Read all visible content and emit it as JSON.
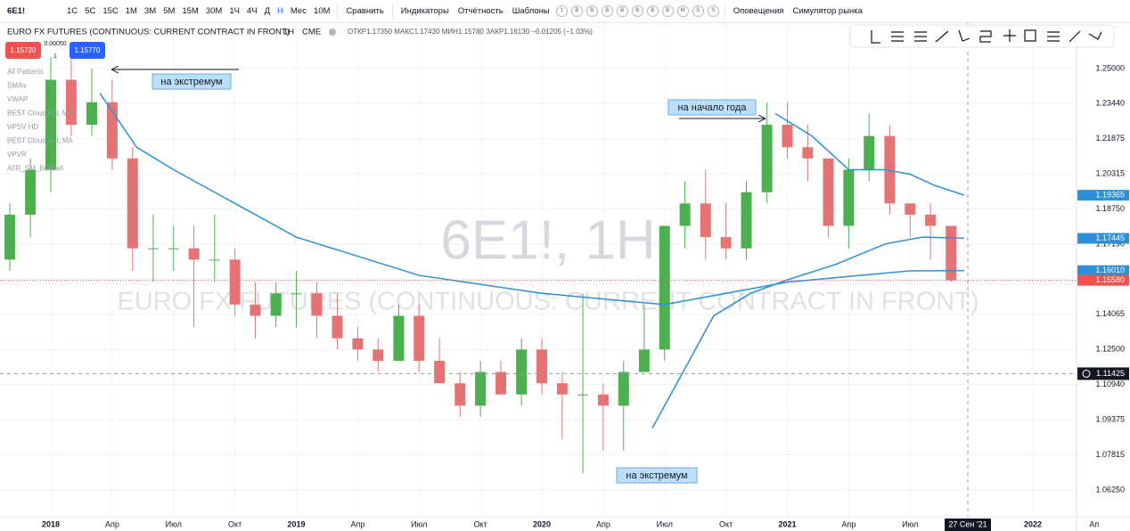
{
  "toolbar": {
    "symbol": "6E1!",
    "intervals": [
      "1С",
      "5С",
      "15С",
      "1М",
      "3М",
      "5М",
      "15М",
      "30М",
      "1Ч",
      "4Ч",
      "Д",
      "Н",
      "Мес",
      "10М"
    ],
    "compare": "Сравнить",
    "indicators": "Индикаторы",
    "reports": "Отчётность",
    "templates": "Шаблоны",
    "badges": [
      "1",
      "B",
      "B",
      "B",
      "B",
      "B",
      "B",
      "B",
      "M",
      "S",
      "S"
    ],
    "alerts": "Оповещения",
    "replay": "Симулятор рынка"
  },
  "legend": {
    "title": "EURO FX FUTURES (CONTINUOUS: CURRENT CONTRACT IN FRONT)",
    "interval": "1H",
    "exchange": "CME",
    "ohlc": "ОТКР1.17350 МАКС1.17430 МИН1.15780 ЗАКР1.16130 −0.01205 (−1.03%)",
    "sell": "1.15720",
    "spread": "0.00050",
    "qty": "1",
    "buy": "1.15770",
    "indicators": [
      "All Patterns",
      "SMAs",
      "VWAP",
      "BEST Cloud ALL MA",
      "VPSV HD",
      "BEST Cloud ALL MA",
      "VPVR",
      "ATR_SM_BullBell"
    ]
  },
  "watermark": {
    "symbol": "6E1!, 1H",
    "description": "EURO FX FUTURES (CONTINUOUS: CURRENT CONTRACT IN FRONT)"
  },
  "chart_data": {
    "type": "candlestick",
    "x": [
      2017.833,
      2017.917,
      2018.0,
      2018.083,
      2018.167,
      2018.25,
      2018.333,
      2018.417,
      2018.5,
      2018.583,
      2018.667,
      2018.75,
      2018.833,
      2018.917,
      2019.0,
      2019.083,
      2019.167,
      2019.25,
      2019.333,
      2019.417,
      2019.5,
      2019.583,
      2019.667,
      2019.75,
      2019.833,
      2019.917,
      2020.0,
      2020.083,
      2020.167,
      2020.25,
      2020.333,
      2020.417,
      2020.5,
      2020.583,
      2020.667,
      2020.75,
      2020.833,
      2020.917,
      2021.0,
      2021.083,
      2021.167,
      2021.25,
      2021.333,
      2021.417,
      2021.5,
      2021.583,
      2021.667
    ],
    "open": [
      1.165,
      1.185,
      1.205,
      1.245,
      1.225,
      1.235,
      1.21,
      1.17,
      1.17,
      1.17,
      1.165,
      1.165,
      1.145,
      1.14,
      1.15,
      1.15,
      1.14,
      1.13,
      1.125,
      1.12,
      1.14,
      1.12,
      1.11,
      1.1,
      1.115,
      1.105,
      1.125,
      1.11,
      1.105,
      1.105,
      1.1,
      1.115,
      1.125,
      1.18,
      1.19,
      1.175,
      1.17,
      1.195,
      1.225,
      1.215,
      1.21,
      1.18,
      1.205,
      1.22,
      1.19,
      1.185,
      1.18
    ],
    "high": [
      1.19,
      1.21,
      1.255,
      1.26,
      1.25,
      1.245,
      1.215,
      1.185,
      1.18,
      1.18,
      1.185,
      1.17,
      1.155,
      1.155,
      1.16,
      1.155,
      1.15,
      1.135,
      1.13,
      1.145,
      1.145,
      1.13,
      1.115,
      1.12,
      1.12,
      1.13,
      1.13,
      1.115,
      1.15,
      1.11,
      1.12,
      1.145,
      1.18,
      1.2,
      1.205,
      1.19,
      1.2,
      1.235,
      1.235,
      1.225,
      1.21,
      1.21,
      1.23,
      1.225,
      1.19,
      1.19,
      1.18
    ],
    "low": [
      1.16,
      1.175,
      1.195,
      1.22,
      1.22,
      1.205,
      1.16,
      1.155,
      1.16,
      1.135,
      1.155,
      1.14,
      1.13,
      1.135,
      1.135,
      1.13,
      1.125,
      1.12,
      1.115,
      1.12,
      1.115,
      1.11,
      1.095,
      1.095,
      1.105,
      1.1,
      1.105,
      1.085,
      1.07,
      1.08,
      1.08,
      1.115,
      1.12,
      1.17,
      1.165,
      1.165,
      1.165,
      1.19,
      1.21,
      1.2,
      1.175,
      1.17,
      1.2,
      1.185,
      1.175,
      1.165,
      1.155
    ],
    "close": [
      1.185,
      1.205,
      1.245,
      1.225,
      1.235,
      1.21,
      1.17,
      1.17,
      1.17,
      1.165,
      1.165,
      1.145,
      1.14,
      1.15,
      1.15,
      1.14,
      1.13,
      1.125,
      1.12,
      1.14,
      1.12,
      1.11,
      1.1,
      1.115,
      1.105,
      1.125,
      1.11,
      1.105,
      1.105,
      1.1,
      1.115,
      1.125,
      1.18,
      1.19,
      1.175,
      1.17,
      1.195,
      1.225,
      1.215,
      1.21,
      1.18,
      1.205,
      1.22,
      1.19,
      1.185,
      1.18,
      1.1558
    ],
    "up_color": "#4caf50",
    "down_color": "#e57373",
    "series": [
      {
        "color": "#2d8fd5",
        "x": [
          2018.2,
          2018.35,
          2018.5,
          2018.75,
          2019.0,
          2019.5,
          2020.0,
          2020.5,
          2020.75,
          2021.0,
          2021.5,
          2021.72
        ],
        "values": [
          1.239,
          1.215,
          1.205,
          1.19,
          1.175,
          1.158,
          1.15,
          1.145,
          1.15,
          1.155,
          1.16,
          1.1601
        ]
      },
      {
        "color": "#2d8fd5",
        "x": [
          2020.45,
          2020.55,
          2020.7,
          2020.85,
          2021.0,
          2021.2,
          2021.4,
          2021.55,
          2021.72
        ],
        "values": [
          1.09,
          1.11,
          1.14,
          1.15,
          1.156,
          1.163,
          1.172,
          1.175,
          1.1745
        ]
      },
      {
        "color": "#2d8fd5",
        "x": [
          2020.95,
          2021.1,
          2021.25,
          2021.4,
          2021.5,
          2021.6,
          2021.72
        ],
        "values": [
          1.23,
          1.22,
          1.205,
          1.205,
          1.203,
          1.198,
          1.1937
        ]
      }
    ],
    "price_badges": [
      {
        "value": 1.19365,
        "label": "1.19365",
        "color": "#2d8fd5"
      },
      {
        "value": 1.17445,
        "label": "1.17445",
        "color": "#2d8fd5"
      },
      {
        "value": 1.1601,
        "label": "1.16010",
        "color": "#2d8fd5"
      },
      {
        "value": 1.1558,
        "label": "1.15580",
        "color": "#ef5350"
      }
    ],
    "crosshair": {
      "x": {
        "value": 2021.735,
        "label": "27 Сен '21"
      },
      "y": {
        "value": 1.11425,
        "label": "1.11425"
      }
    },
    "annotations": [
      "на экстремум",
      "на начало года",
      "на экстремум"
    ],
    "xlim": [
      2017.793,
      2022.294
    ],
    "xticks": [
      2018,
      {
        "value": 2018.25,
        "label": "Апр"
      },
      {
        "value": 2018.5,
        "label": "Июл"
      },
      {
        "value": 2018.75,
        "label": "Окт"
      },
      2019,
      {
        "value": 2019.25,
        "label": "Апр"
      },
      {
        "value": 2019.5,
        "label": "Июл"
      },
      {
        "value": 2019.75,
        "label": "Окт"
      },
      2020,
      {
        "value": 2020.25,
        "label": "Апр"
      },
      {
        "value": 2020.5,
        "label": "Июл"
      },
      {
        "value": 2020.75,
        "label": "Окт"
      },
      2021,
      {
        "value": 2021.25,
        "label": "Апр"
      },
      {
        "value": 2021.5,
        "label": "Июл"
      },
      2022,
      {
        "value": 2022.25,
        "label": "Ап"
      }
    ],
    "ylim": [
      1.0506,
      1.2702
    ],
    "yticks": [
      {
        "value": 1.25,
        "label": "1.25000"
      },
      {
        "value": 1.2344,
        "label": "1.23440"
      },
      {
        "value": 1.21875,
        "label": "1.21875"
      },
      {
        "value": 1.20315,
        "label": "1.20315"
      },
      {
        "value": 1.1875,
        "label": "1.18750"
      },
      {
        "value": 1.1719,
        "label": "1.17190"
      },
      {
        "value": 1.14065,
        "label": "1.14065"
      },
      {
        "value": 1.125,
        "label": "1.12500"
      },
      {
        "value": 1.1094,
        "label": "1.10940"
      },
      {
        "value": 1.09375,
        "label": "1.09375"
      },
      {
        "value": 1.07815,
        "label": "1.07815"
      },
      {
        "value": 1.0625,
        "label": "1.06250"
      }
    ],
    "grid": true
  }
}
